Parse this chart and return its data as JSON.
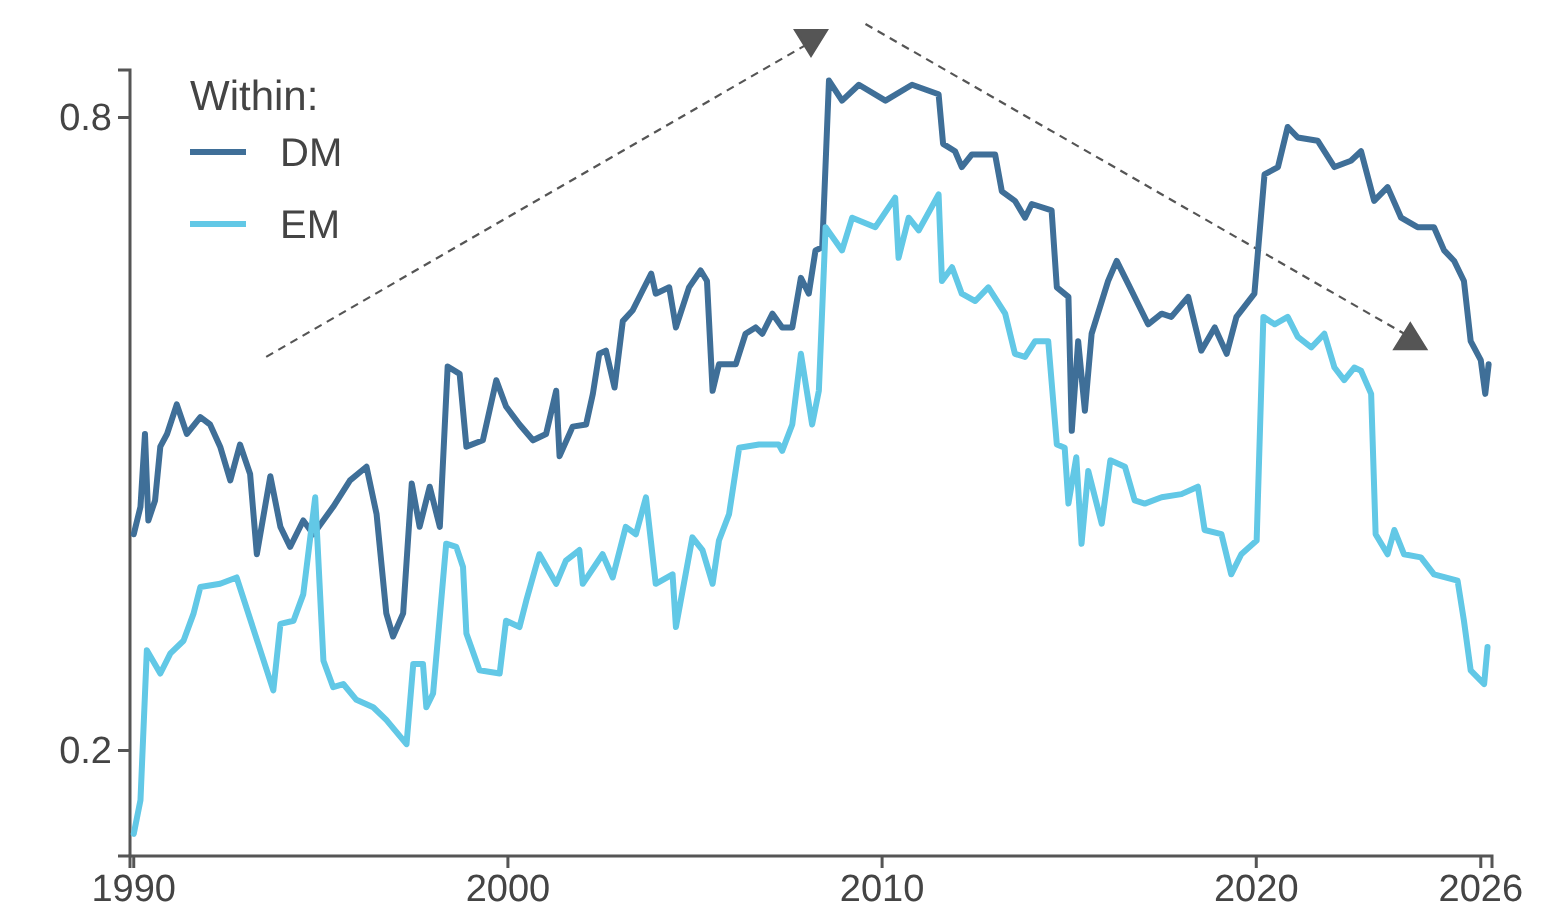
{
  "chart_data": {
    "type": "line",
    "legend_title": "Within:",
    "legend": "top left",
    "grid": false,
    "xlim": [
      1989.9,
      2026.3
    ],
    "xticks": [
      1990,
      2000,
      2010,
      2020,
      2026
    ],
    "ylim": [
      0.1,
      0.845
    ],
    "yticks": [
      0.2,
      0.8
    ],
    "series": [
      {
        "name": "DM",
        "color": "#3f6f98",
        "x": [
          1990.0,
          1990.18,
          1990.3,
          1990.39,
          1990.57,
          1990.71,
          1990.89,
          1991.15,
          1991.42,
          1991.78,
          1992.04,
          1992.31,
          1992.58,
          1992.84,
          1993.11,
          1993.29,
          1993.65,
          1993.92,
          1994.18,
          1994.53,
          1994.8,
          1995.33,
          1995.78,
          1996.22,
          1996.49,
          1996.75,
          1996.93,
          1997.2,
          1997.43,
          1997.64,
          1997.91,
          1998.18,
          1998.39,
          1998.71,
          1998.89,
          1999.33,
          1999.69,
          1999.95,
          2000.31,
          2000.67,
          2001.02,
          2001.29,
          2001.38,
          2001.73,
          2002.09,
          2002.27,
          2002.44,
          2002.62,
          2002.85,
          2003.07,
          2003.33,
          2003.6,
          2003.83,
          2003.95,
          2004.31,
          2004.49,
          2004.84,
          2005.15,
          2005.32,
          2005.47,
          2005.64,
          2006.09,
          2006.35,
          2006.62,
          2006.8,
          2007.07,
          2007.33,
          2007.6,
          2007.83,
          2008.04,
          2008.22,
          2008.4,
          2008.58,
          2008.93,
          2009.38,
          2010.09,
          2010.8,
          2011.51,
          2011.63,
          2011.95,
          2012.13,
          2012.4,
          2013.02,
          2013.2,
          2013.55,
          2013.82,
          2014.0,
          2014.53,
          2014.67,
          2014.98,
          2015.07,
          2015.24,
          2015.42,
          2015.6,
          2016.04,
          2016.27,
          2016.58,
          2017.11,
          2017.47,
          2017.73,
          2018.18,
          2018.53,
          2018.89,
          2019.21,
          2019.47,
          2019.95,
          2020.22,
          2020.58,
          2020.84,
          2021.11,
          2021.64,
          2022.09,
          2022.53,
          2022.8,
          2023.15,
          2023.51,
          2023.87,
          2024.31,
          2024.75,
          2025.02,
          2025.29,
          2025.55,
          2025.73,
          2026.0,
          2026.12,
          2026.21
        ],
        "values": [
          0.405,
          0.431,
          0.5,
          0.418,
          0.437,
          0.488,
          0.5,
          0.528,
          0.5,
          0.516,
          0.509,
          0.488,
          0.456,
          0.49,
          0.462,
          0.386,
          0.46,
          0.412,
          0.393,
          0.418,
          0.405,
          0.431,
          0.456,
          0.469,
          0.424,
          0.33,
          0.308,
          0.33,
          0.453,
          0.412,
          0.45,
          0.412,
          0.564,
          0.557,
          0.488,
          0.494,
          0.551,
          0.526,
          0.509,
          0.494,
          0.5,
          0.541,
          0.479,
          0.507,
          0.509,
          0.538,
          0.576,
          0.579,
          0.544,
          0.607,
          0.617,
          0.636,
          0.652,
          0.633,
          0.639,
          0.601,
          0.639,
          0.655,
          0.645,
          0.541,
          0.566,
          0.566,
          0.595,
          0.601,
          0.595,
          0.614,
          0.601,
          0.601,
          0.648,
          0.633,
          0.674,
          0.677,
          0.835,
          0.816,
          0.831,
          0.816,
          0.831,
          0.822,
          0.775,
          0.768,
          0.753,
          0.765,
          0.765,
          0.73,
          0.721,
          0.705,
          0.718,
          0.712,
          0.639,
          0.63,
          0.503,
          0.588,
          0.522,
          0.595,
          0.645,
          0.664,
          0.642,
          0.604,
          0.614,
          0.611,
          0.63,
          0.579,
          0.601,
          0.576,
          0.611,
          0.633,
          0.746,
          0.753,
          0.791,
          0.781,
          0.778,
          0.753,
          0.759,
          0.768,
          0.721,
          0.734,
          0.705,
          0.696,
          0.696,
          0.674,
          0.664,
          0.645,
          0.588,
          0.57,
          0.538,
          0.566
        ]
      },
      {
        "name": "EM",
        "color": "#62c8e6",
        "x": [
          1990.0,
          1990.18,
          1990.35,
          1990.71,
          1990.98,
          1991.33,
          1991.6,
          1991.78,
          1992.31,
          1992.75,
          1993.73,
          1993.92,
          1994.27,
          1994.53,
          1994.85,
          1995.07,
          1995.33,
          1995.6,
          1995.95,
          1996.4,
          1996.75,
          1997.29,
          1997.47,
          1997.73,
          1997.82,
          1998.0,
          1998.35,
          1998.62,
          1998.8,
          1998.89,
          1999.24,
          1999.78,
          1999.95,
          2000.31,
          2000.49,
          2000.84,
          2001.29,
          2001.55,
          2001.91,
          2002.0,
          2002.53,
          2002.8,
          2003.15,
          2003.42,
          2003.69,
          2003.95,
          2004.4,
          2004.49,
          2004.93,
          2005.2,
          2005.47,
          2005.64,
          2005.91,
          2006.18,
          2006.71,
          2007.24,
          2007.33,
          2007.6,
          2007.83,
          2008.13,
          2008.31,
          2008.49,
          2008.93,
          2009.2,
          2009.82,
          2010.35,
          2010.44,
          2010.71,
          2010.98,
          2011.51,
          2011.6,
          2011.87,
          2012.13,
          2012.49,
          2012.84,
          2013.29,
          2013.55,
          2013.82,
          2014.09,
          2014.44,
          2014.67,
          2014.88,
          2014.98,
          2015.19,
          2015.33,
          2015.51,
          2015.87,
          2016.1,
          2016.49,
          2016.75,
          2017.02,
          2017.47,
          2018.0,
          2018.44,
          2018.62,
          2019.07,
          2019.33,
          2019.6,
          2020.01,
          2020.19,
          2020.49,
          2020.84,
          2021.11,
          2021.47,
          2021.82,
          2022.09,
          2022.35,
          2022.62,
          2022.8,
          2023.07,
          2023.19,
          2023.51,
          2023.69,
          2023.95,
          2024.4,
          2024.75,
          2025.38,
          2025.55,
          2025.73,
          2026.09,
          2026.18
        ],
        "values": [
          0.121,
          0.153,
          0.295,
          0.273,
          0.292,
          0.304,
          0.33,
          0.355,
          0.358,
          0.364,
          0.257,
          0.32,
          0.323,
          0.348,
          0.44,
          0.285,
          0.26,
          0.263,
          0.248,
          0.241,
          0.229,
          0.206,
          0.282,
          0.282,
          0.241,
          0.254,
          0.396,
          0.393,
          0.374,
          0.311,
          0.276,
          0.273,
          0.323,
          0.317,
          0.342,
          0.386,
          0.358,
          0.38,
          0.39,
          0.358,
          0.386,
          0.364,
          0.412,
          0.405,
          0.44,
          0.358,
          0.367,
          0.317,
          0.402,
          0.39,
          0.358,
          0.399,
          0.424,
          0.487,
          0.49,
          0.49,
          0.484,
          0.509,
          0.576,
          0.509,
          0.541,
          0.696,
          0.674,
          0.705,
          0.696,
          0.724,
          0.667,
          0.705,
          0.693,
          0.727,
          0.645,
          0.658,
          0.633,
          0.626,
          0.639,
          0.614,
          0.576,
          0.573,
          0.588,
          0.588,
          0.49,
          0.487,
          0.434,
          0.478,
          0.396,
          0.465,
          0.415,
          0.475,
          0.469,
          0.437,
          0.434,
          0.44,
          0.443,
          0.45,
          0.409,
          0.405,
          0.367,
          0.386,
          0.399,
          0.611,
          0.604,
          0.611,
          0.592,
          0.582,
          0.595,
          0.563,
          0.551,
          0.563,
          0.56,
          0.538,
          0.405,
          0.386,
          0.409,
          0.386,
          0.383,
          0.367,
          0.361,
          0.323,
          0.276,
          0.263,
          0.298
        ]
      }
    ]
  }
}
